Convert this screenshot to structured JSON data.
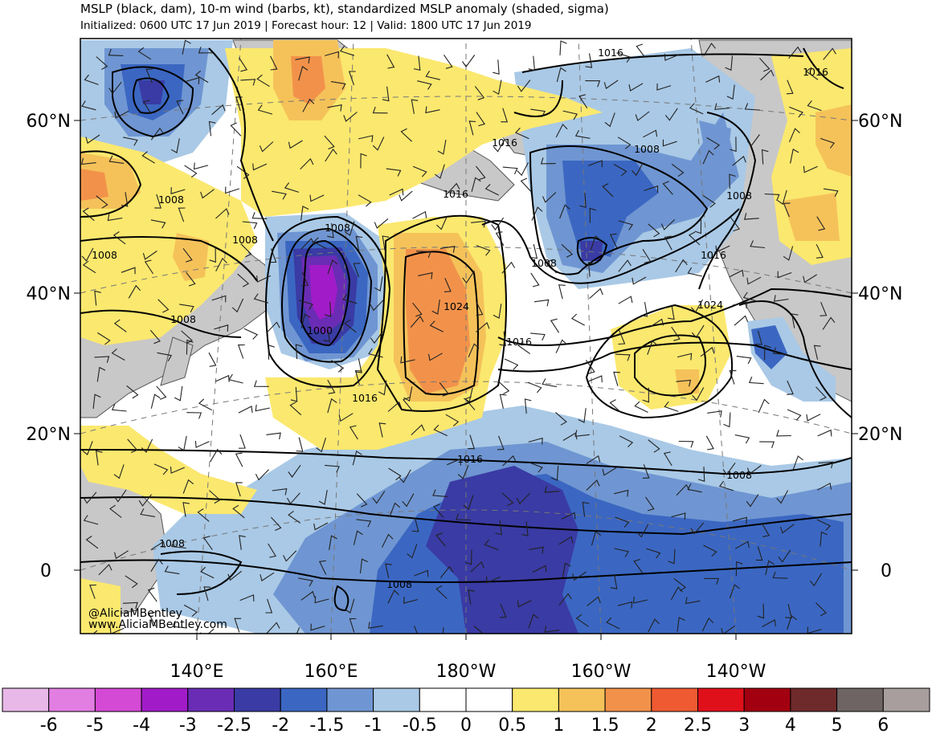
{
  "header": {
    "title": "MSLP (black, dam), 10-m wind (barbs, kt), standardized MSLP anomaly (shaded, sigma)",
    "subtitle": "Initialized: 0600 UTC 17 Jun 2019 | Forecast hour: 12 | Valid: 1800 UTC 17 Jun 2019"
  },
  "map": {
    "lat_labels": [
      "60°N",
      "40°N",
      "20°N",
      "0"
    ],
    "lon_labels": [
      "140°E",
      "160°E",
      "180°W",
      "160°W",
      "140°W"
    ],
    "isobar_labels": [
      "1016",
      "1016",
      "1016",
      "1008",
      "1016",
      "1008",
      "1008",
      "1008",
      "1008",
      "1008",
      "1008",
      "1024",
      "1000",
      "1016",
      "1008",
      "1016",
      "1024",
      "1016",
      "1016",
      "1008",
      "1008"
    ],
    "credit_line1": "@AliciaMBentley",
    "credit_line2": "www.AliciaMBentley.com"
  },
  "colorbar": {
    "colors": [
      "#e8b8e8",
      "#e27ee2",
      "#d44ad4",
      "#a11cc8",
      "#6a2cb4",
      "#3a3ba4",
      "#3b67c2",
      "#6f96d2",
      "#a9c9e6",
      "#ffffff",
      "#ffffff",
      "#fbe86e",
      "#f5c25a",
      "#f2924a",
      "#ef5a32",
      "#e0101a",
      "#a20010",
      "#6e2a2a",
      "#6e6464",
      "#a89e9e"
    ],
    "tick_labels": [
      "-6",
      "-5",
      "-4",
      "-3",
      "-2.5",
      "-2",
      "-1.5",
      "-1",
      "-0.5",
      "0",
      "0.5",
      "1",
      "1.5",
      "2",
      "2.5",
      "3",
      "4",
      "5",
      "6"
    ]
  }
}
